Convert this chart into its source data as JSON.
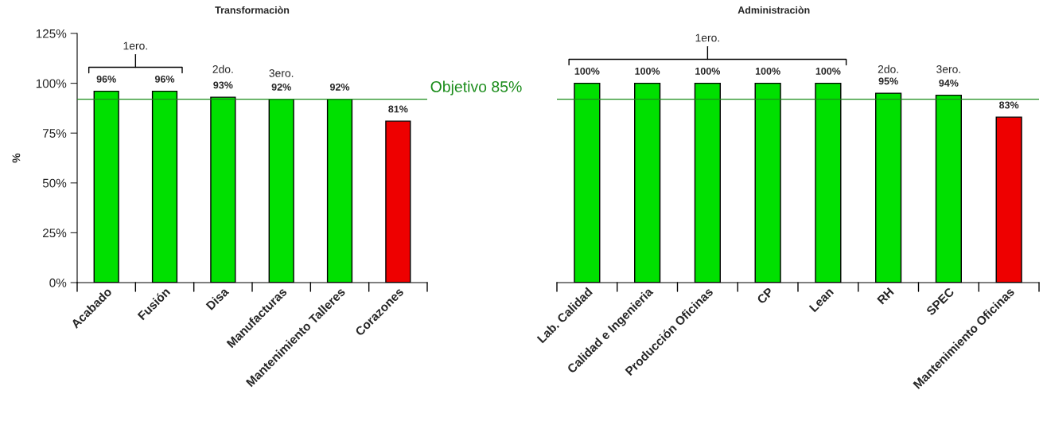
{
  "chart_data": [
    {
      "type": "bar",
      "title": "Transformaciòn",
      "ylabel": "%",
      "categories": [
        "Acabado",
        "Fusión",
        "Disa",
        "Manufacturas",
        "Mantenimiento Talleres",
        "Corazones"
      ],
      "values": [
        96,
        96,
        93,
        92,
        92,
        81
      ],
      "colors": [
        "#00e000",
        "#00e000",
        "#00e000",
        "#00e000",
        "#00e000",
        "#ee0000"
      ],
      "value_labels": [
        "96%",
        "96%",
        "93%",
        "92%",
        "92%",
        "81%"
      ],
      "ylim": [
        0,
        125
      ],
      "yticks": [
        {
          "value": 0,
          "label": "0%"
        },
        {
          "value": 25,
          "label": "25%"
        },
        {
          "value": 50,
          "label": "50%"
        },
        {
          "value": 75,
          "label": "75%"
        },
        {
          "value": 100,
          "label": "100%"
        },
        {
          "value": 125,
          "label": "125%"
        }
      ],
      "ref_lines": [
        {
          "axis": "y",
          "value": 92,
          "label": "Objetivo 85%",
          "color": "#1a8c1a"
        }
      ],
      "annotations": [
        "1ero.",
        "2do.",
        "3ero."
      ]
    },
    {
      "type": "bar",
      "title": "Administraciòn",
      "categories": [
        "Lab. Calidad",
        "Calidad e Ingenieria",
        "Producción Oficinas",
        "CP",
        "Lean",
        "RH",
        "SPEC",
        "Mantenimiento Oficinas"
      ],
      "values": [
        100,
        100,
        100,
        100,
        100,
        95,
        94,
        83
      ],
      "colors": [
        "#00e000",
        "#00e000",
        "#00e000",
        "#00e000",
        "#00e000",
        "#00e000",
        "#00e000",
        "#ee0000"
      ],
      "value_labels": [
        "100%",
        "100%",
        "100%",
        "100%",
        "100%",
        "95%",
        "94%",
        "83%"
      ],
      "ylim": [
        0,
        125
      ],
      "tick_labels": "x",
      "ref_lines": [
        {
          "axis": "y",
          "value": 92,
          "color": "#1a8c1a"
        }
      ],
      "annotations": [
        "1ero.",
        "2do.",
        "3ero."
      ]
    }
  ]
}
